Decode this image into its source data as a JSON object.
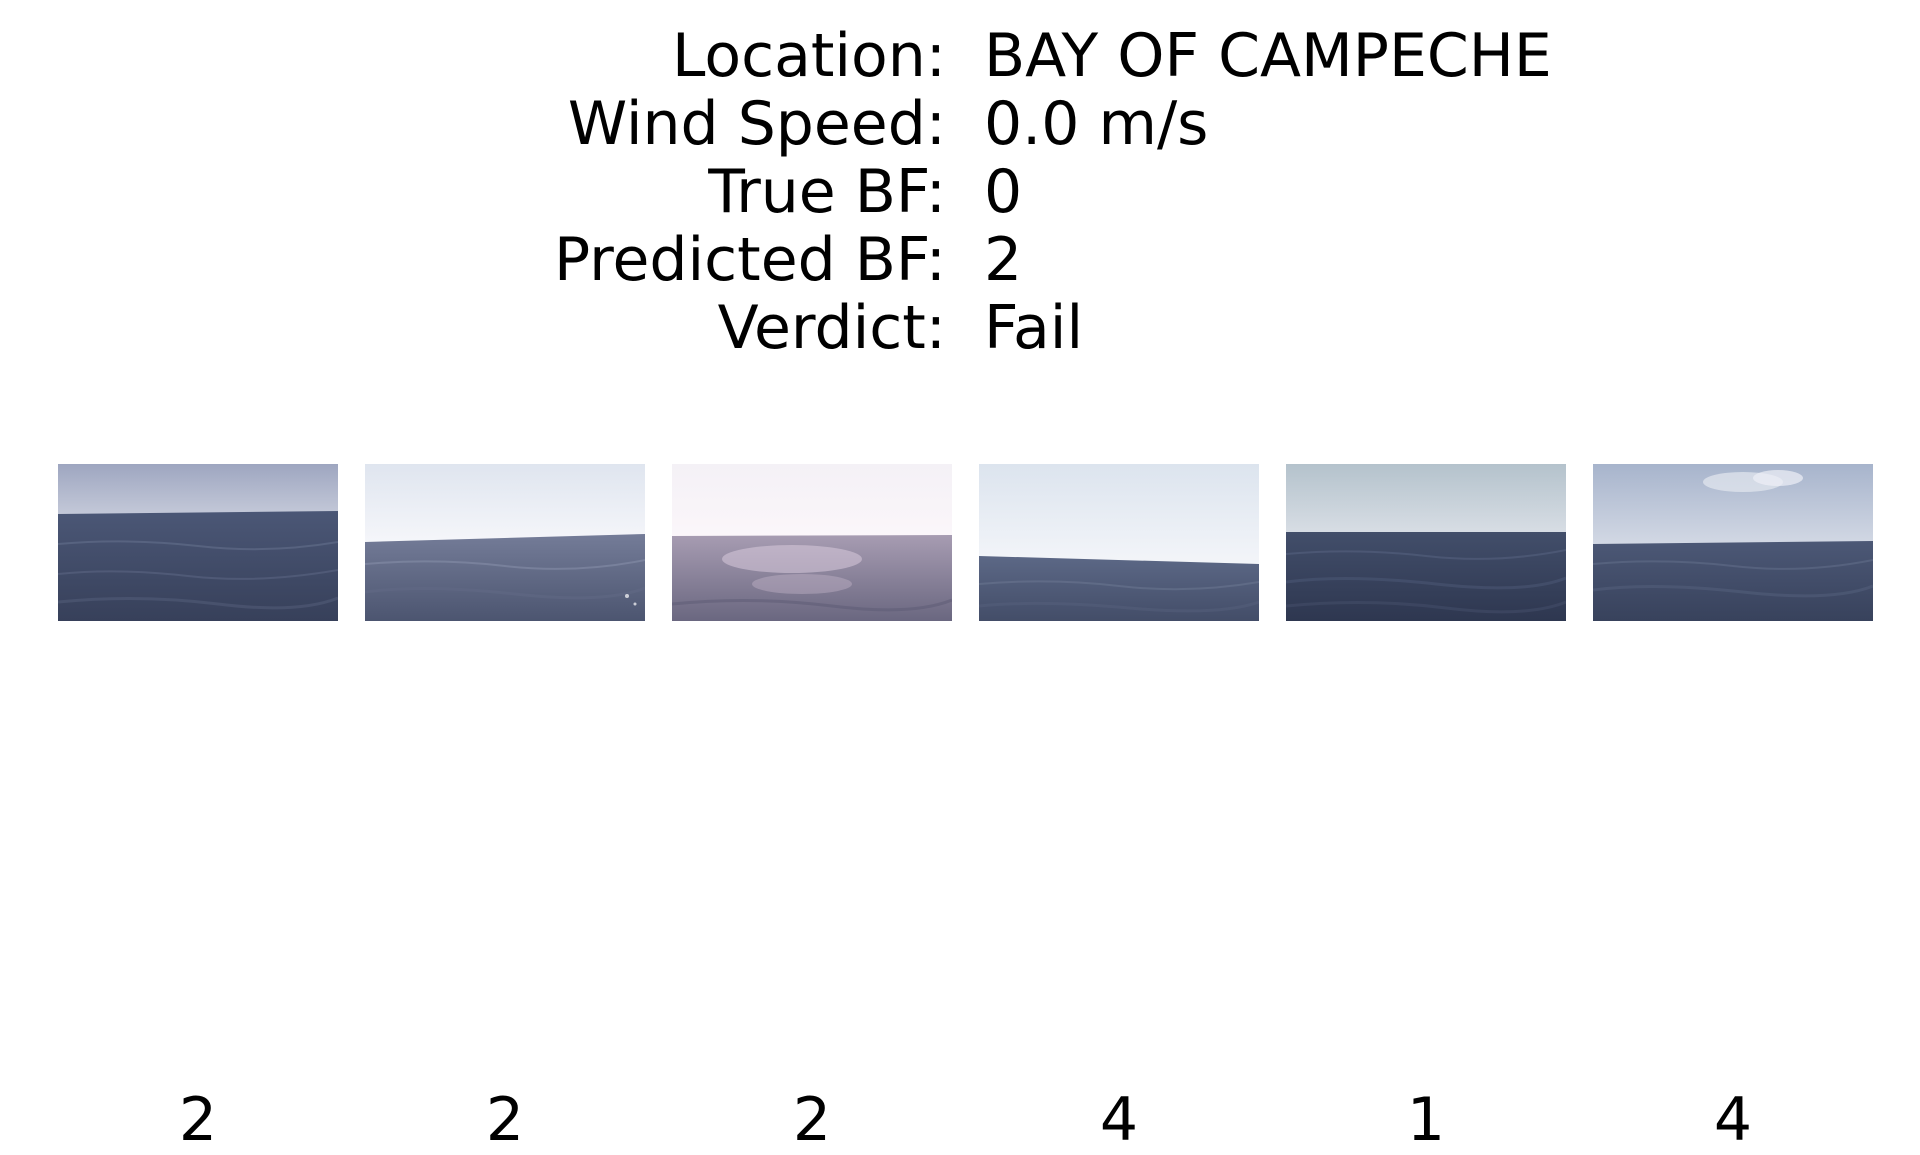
{
  "info": {
    "location_label": "Location:",
    "location_value": "BAY OF CAMPECHE",
    "wind_label": "Wind Speed:",
    "wind_value": "0.0 m/s",
    "true_bf_label": "True BF:",
    "true_bf_value": "0",
    "pred_bf_label": "Predicted BF:",
    "pred_bf_value": "2",
    "verdict_label": "Verdict:",
    "verdict_value": "Fail"
  },
  "thumbnails": [
    {
      "label": "2",
      "sky_top": "#9ea6c0",
      "sky_bottom": "#c3c8d8",
      "sea_top": "#4b5776",
      "sea_bottom": "#37405a"
    },
    {
      "label": "2",
      "sky_top": "#dfe5ef",
      "sky_bottom": "#f5f6fa",
      "sea_top": "#747c98",
      "sea_bottom": "#4c5570"
    },
    {
      "label": "2",
      "sky_top": "#f4f1f6",
      "sky_bottom": "#fbf6fa",
      "sea_top": "#a79cb2",
      "sea_bottom": "#6a6780"
    },
    {
      "label": "4",
      "sky_top": "#dce4ee",
      "sky_bottom": "#f3f5f9",
      "sea_top": "#5c6886",
      "sea_bottom": "#434d68"
    },
    {
      "label": "1",
      "sky_top": "#b4c2cc",
      "sky_bottom": "#d7dde4",
      "sea_top": "#424e6a",
      "sea_bottom": "#2e3750"
    },
    {
      "label": "4",
      "sky_top": "#a7b4cc",
      "sky_bottom": "#d2d8e4",
      "sea_top": "#4c5876",
      "sea_bottom": "#38425c"
    }
  ]
}
